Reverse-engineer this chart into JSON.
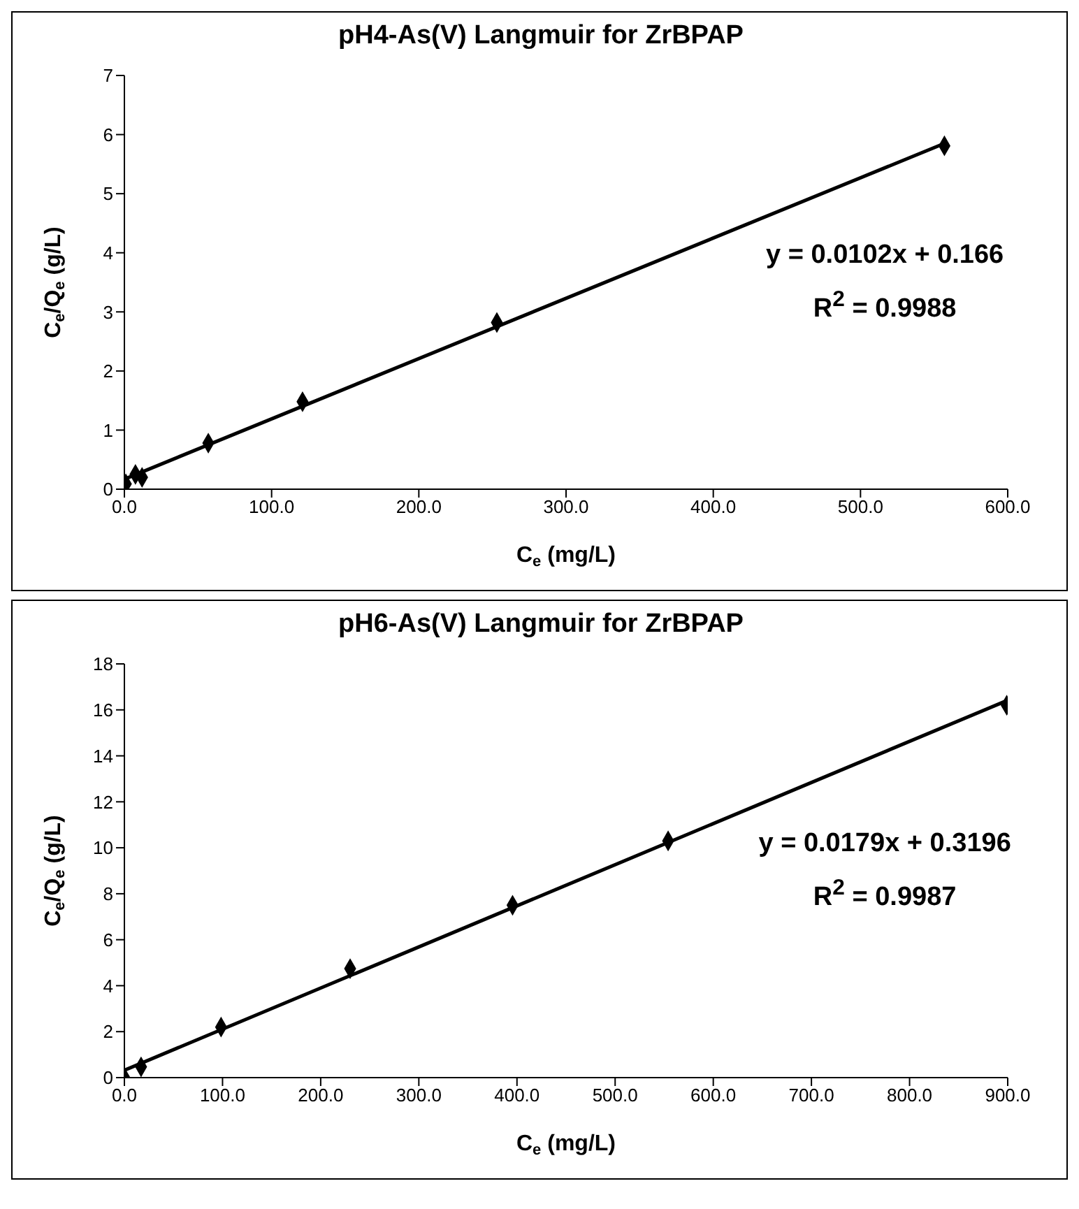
{
  "chart_data": [
    {
      "type": "scatter",
      "title": "pH4-As(V) Langmuir for ZrBPAP",
      "xlabel": "C$_{e}$ (mg/L)",
      "ylabel": "C$_{e}$/Q$_{e}$ (g/L)",
      "annotations": [
        "y = 0.0102x + 0.166",
        "R$^{2}$ = 0.9988"
      ],
      "xlim": [
        0,
        600
      ],
      "xticks": [
        {
          "value": 0,
          "label": "0.0"
        },
        {
          "value": 100,
          "label": "100.0"
        },
        {
          "value": 200,
          "label": "200.0"
        },
        {
          "value": 300,
          "label": "300.0"
        },
        {
          "value": 400,
          "label": "400.0"
        },
        {
          "value": 500,
          "label": "500.0"
        },
        {
          "value": 600,
          "label": "600.0"
        }
      ],
      "ylim": [
        0,
        7
      ],
      "yticks": [
        0,
        1,
        2,
        3,
        4,
        5,
        6,
        7
      ],
      "grid": false,
      "legend": false,
      "series": [
        {
          "type": "scatter",
          "color": "#000000",
          "marker": "diamond",
          "x": [
            1,
            7.5,
            12,
            57,
            121,
            253,
            557
          ],
          "values": [
            0.09,
            0.25,
            0.2,
            0.78,
            1.48,
            2.82,
            5.81
          ]
        },
        {
          "type": "line",
          "color": "#000000",
          "marker": "none",
          "line_style": "solid",
          "x": [
            0,
            557
          ],
          "values": [
            0.17,
            5.85
          ]
        }
      ]
    },
    {
      "type": "scatter",
      "title": "pH6-As(V) Langmuir for ZrBPAP",
      "xlabel": "C$_{e}$ (mg/L)",
      "ylabel": "C$_{e}$/Q$_{e}$ (g/L)",
      "annotations": [
        "y = 0.0179x + 0.3196",
        "R$^{2}$ = 0.9987"
      ],
      "xlim": [
        0,
        900
      ],
      "xticks": [
        {
          "value": 0,
          "label": "0.0"
        },
        {
          "value": 100,
          "label": "100.0"
        },
        {
          "value": 200,
          "label": "200.0"
        },
        {
          "value": 300,
          "label": "300.0"
        },
        {
          "value": 400,
          "label": "400.0"
        },
        {
          "value": 500,
          "label": "500.0"
        },
        {
          "value": 600,
          "label": "600.0"
        },
        {
          "value": 700,
          "label": "700.0"
        },
        {
          "value": 800,
          "label": "800.0"
        },
        {
          "value": 900,
          "label": "900.0"
        }
      ],
      "ylim": [
        0,
        18
      ],
      "yticks": [
        0,
        2,
        4,
        6,
        8,
        10,
        12,
        14,
        16,
        18
      ],
      "grid": false,
      "legend": false,
      "series": [
        {
          "type": "scatter",
          "color": "#000000",
          "marker": "diamond",
          "x": [
            0,
            17,
            98.5,
            230,
            395.5,
            554,
            899
          ],
          "values": [
            0,
            0.47,
            2.2,
            4.74,
            7.5,
            10.3,
            16.2
          ]
        },
        {
          "type": "line",
          "color": "#000000",
          "marker": "none",
          "line_style": "solid",
          "x": [
            0,
            899
          ],
          "values": [
            0.32,
            16.4
          ]
        }
      ]
    }
  ]
}
